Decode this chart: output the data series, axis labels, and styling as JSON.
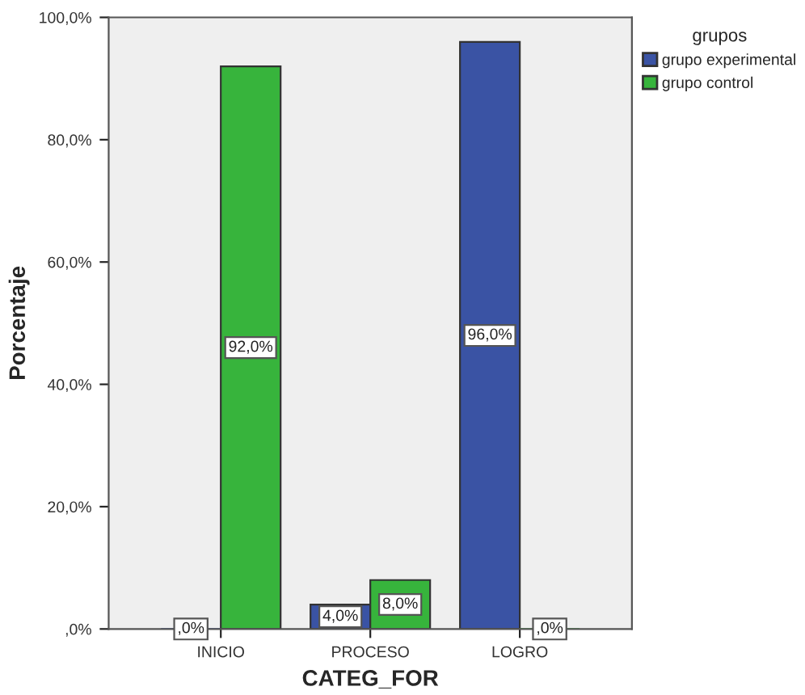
{
  "chart_data": {
    "type": "bar",
    "xlabel": "CATEG_FOR",
    "ylabel": "Porcentaje",
    "legend_title": "grupos",
    "categories": [
      "INICIO",
      "PROCESO",
      "LOGRO"
    ],
    "series": [
      {
        "name": "grupo experimental",
        "color": "#3a53a4",
        "values": [
          0,
          4,
          96
        ],
        "value_labels": [
          ",0%",
          "4,0%",
          "96,0%"
        ]
      },
      {
        "name": "grupo control",
        "color": "#37b43c",
        "values": [
          92,
          8,
          0
        ],
        "value_labels": [
          "92,0%",
          "8,0%",
          ",0%"
        ]
      }
    ],
    "ylim": [
      0,
      100
    ],
    "yticks": [
      {
        "value": 0,
        "label": ",0%"
      },
      {
        "value": 20,
        "label": "20,0%"
      },
      {
        "value": 40,
        "label": "40,0%"
      },
      {
        "value": 60,
        "label": "60,0%"
      },
      {
        "value": 80,
        "label": "80,0%"
      },
      {
        "value": 100,
        "label": "100,0%"
      }
    ],
    "grid": false,
    "legend": "top right"
  }
}
